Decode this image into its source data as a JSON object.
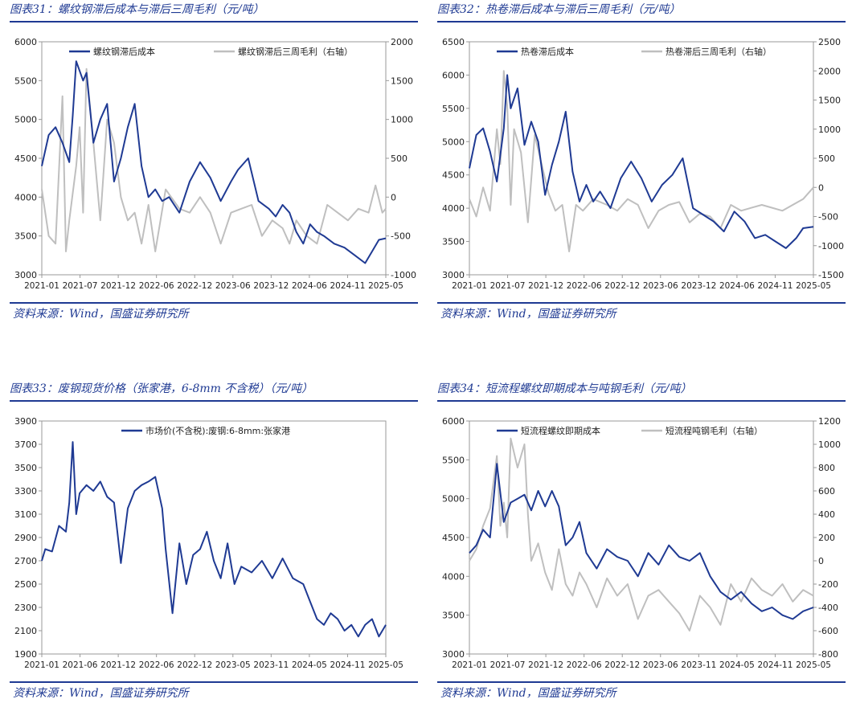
{
  "panels": [
    {
      "title": "图表31：螺纹钢滞后成本与滞后三周毛利（元/吨）",
      "source": "资料来源：Wind，国盛证券研究所",
      "chart_data": {
        "type": "line",
        "x_ticks": [
          "2021-01",
          "2021-07",
          "2021-12",
          "2022-06",
          "2022-12",
          "2023-06",
          "2023-12",
          "2024-06",
          "2024-11",
          "2025-05"
        ],
        "y_left": {
          "min": 3000,
          "max": 6000,
          "ticks": [
            3000,
            3500,
            4000,
            4500,
            5000,
            5500,
            6000
          ]
        },
        "y_right": {
          "min": -1000,
          "max": 2000,
          "ticks": [
            -1000,
            -500,
            0,
            500,
            1000,
            1500,
            2000
          ]
        },
        "legend": "top-center",
        "series": [
          {
            "name": "螺纹钢滞后成本",
            "axis": "left",
            "color": "#1f3a93",
            "x": [
              0,
              0.02,
              0.04,
              0.06,
              0.08,
              0.09,
              0.1,
              0.12,
              0.13,
              0.15,
              0.17,
              0.19,
              0.21,
              0.23,
              0.25,
              0.27,
              0.29,
              0.31,
              0.33,
              0.35,
              0.37,
              0.4,
              0.43,
              0.46,
              0.49,
              0.52,
              0.55,
              0.57,
              0.6,
              0.63,
              0.66,
              0.68,
              0.7,
              0.72,
              0.74,
              0.76,
              0.78,
              0.8,
              0.82,
              0.85,
              0.88,
              0.91,
              0.94,
              0.96,
              0.98,
              1.0
            ],
            "y": [
              4400,
              4800,
              4900,
              4700,
              4450,
              5050,
              5750,
              5500,
              5600,
              4700,
              5000,
              5200,
              4200,
              4500,
              4900,
              5200,
              4400,
              4000,
              4100,
              3950,
              4000,
              3800,
              4200,
              4450,
              4250,
              3950,
              4200,
              4350,
              4500,
              3950,
              3850,
              3750,
              3900,
              3800,
              3550,
              3400,
              3650,
              3550,
              3500,
              3400,
              3350,
              3250,
              3150,
              3300,
              3450,
              3470
            ]
          },
          {
            "name": "螺纹钢滞后三周毛利（右轴）",
            "axis": "right",
            "color": "#bfbfbf",
            "x": [
              0,
              0.02,
              0.04,
              0.06,
              0.07,
              0.08,
              0.1,
              0.11,
              0.12,
              0.13,
              0.15,
              0.17,
              0.19,
              0.21,
              0.23,
              0.25,
              0.27,
              0.29,
              0.31,
              0.33,
              0.36,
              0.4,
              0.43,
              0.46,
              0.49,
              0.52,
              0.55,
              0.58,
              0.61,
              0.64,
              0.67,
              0.7,
              0.72,
              0.74,
              0.77,
              0.8,
              0.83,
              0.86,
              0.89,
              0.92,
              0.95,
              0.97,
              0.99,
              1.0
            ],
            "y": [
              100,
              -500,
              -600,
              1300,
              -700,
              -300,
              400,
              900,
              -200,
              1650,
              700,
              -300,
              1000,
              700,
              0,
              -300,
              -200,
              -600,
              -100,
              -700,
              100,
              -150,
              -200,
              0,
              -200,
              -600,
              -200,
              -150,
              -100,
              -500,
              -300,
              -400,
              -600,
              -300,
              -500,
              -600,
              -100,
              -200,
              -300,
              -150,
              -200,
              150,
              -200,
              -150
            ]
          }
        ]
      }
    },
    {
      "title": "图表32：热卷滞后成本与滞后三周毛利（元/吨）",
      "source": "资料来源：Wind，国盛证券研究所",
      "chart_data": {
        "type": "line",
        "x_ticks": [
          "2021-01",
          "2021-07",
          "2021-12",
          "2022-06",
          "2022-12",
          "2023-06",
          "2023-12",
          "2024-06",
          "2024-11",
          "2025-05"
        ],
        "y_left": {
          "min": 3000,
          "max": 6500,
          "ticks": [
            3000,
            3500,
            4000,
            4500,
            5000,
            5500,
            6000,
            6500
          ]
        },
        "y_right": {
          "min": -1500,
          "max": 2500,
          "ticks": [
            -1500,
            -1000,
            -500,
            0,
            500,
            1000,
            1500,
            2000,
            2500
          ]
        },
        "legend": "top-center",
        "series": [
          {
            "name": "热卷滞后成本",
            "axis": "left",
            "color": "#1f3a93",
            "x": [
              0,
              0.02,
              0.04,
              0.06,
              0.08,
              0.1,
              0.11,
              0.12,
              0.14,
              0.16,
              0.18,
              0.2,
              0.22,
              0.24,
              0.26,
              0.28,
              0.3,
              0.32,
              0.34,
              0.36,
              0.38,
              0.41,
              0.44,
              0.47,
              0.5,
              0.53,
              0.56,
              0.59,
              0.62,
              0.65,
              0.68,
              0.71,
              0.74,
              0.77,
              0.8,
              0.83,
              0.86,
              0.89,
              0.92,
              0.95,
              0.97,
              1.0
            ],
            "y": [
              4600,
              5100,
              5200,
              4850,
              4400,
              5200,
              6000,
              5500,
              5800,
              4950,
              5300,
              5000,
              4200,
              4650,
              5000,
              5450,
              4550,
              4100,
              4350,
              4100,
              4250,
              4000,
              4450,
              4700,
              4450,
              4100,
              4350,
              4500,
              4750,
              4000,
              3900,
              3800,
              3650,
              3950,
              3800,
              3550,
              3600,
              3500,
              3400,
              3550,
              3700,
              3720
            ]
          },
          {
            "name": "热卷滞后三周毛利（右轴）",
            "axis": "right",
            "color": "#bfbfbf",
            "x": [
              0,
              0.02,
              0.04,
              0.06,
              0.08,
              0.09,
              0.1,
              0.11,
              0.12,
              0.13,
              0.15,
              0.17,
              0.19,
              0.21,
              0.23,
              0.25,
              0.27,
              0.29,
              0.31,
              0.33,
              0.36,
              0.4,
              0.43,
              0.46,
              0.49,
              0.52,
              0.55,
              0.58,
              0.61,
              0.64,
              0.67,
              0.7,
              0.73,
              0.76,
              0.79,
              0.82,
              0.85,
              0.88,
              0.91,
              0.94,
              0.97,
              1.0
            ],
            "y": [
              -200,
              -500,
              0,
              -400,
              1000,
              400,
              2000,
              1400,
              -300,
              1000,
              600,
              -600,
              900,
              400,
              -100,
              -400,
              -300,
              -1100,
              -300,
              -400,
              -200,
              -300,
              -400,
              -200,
              -300,
              -700,
              -400,
              -300,
              -250,
              -600,
              -450,
              -500,
              -700,
              -300,
              -400,
              -350,
              -300,
              -350,
              -400,
              -300,
              -200,
              0
            ]
          }
        ]
      }
    },
    {
      "title": "图表33：废钢现货价格（张家港，6-8mm 不含税）（元/吨）",
      "source": "资料来源：Wind，国盛证券研究所",
      "chart_data": {
        "type": "line",
        "x_ticks": [
          "2021-01",
          "2021-06",
          "2021-12",
          "2022-06",
          "2022-12",
          "2023-05",
          "2023-11",
          "2024-05",
          "2024-11",
          "2025-05"
        ],
        "y_left": {
          "min": 1900,
          "max": 3900,
          "ticks": [
            1900,
            2100,
            2300,
            2500,
            2700,
            2900,
            3100,
            3300,
            3500,
            3700,
            3900
          ]
        },
        "legend": "top-center",
        "series": [
          {
            "name": "市场价(不含税):废钢:6-8mm:张家港",
            "axis": "left",
            "color": "#1f3a93",
            "x": [
              0,
              0.01,
              0.03,
              0.05,
              0.07,
              0.08,
              0.09,
              0.1,
              0.11,
              0.13,
              0.15,
              0.17,
              0.19,
              0.21,
              0.23,
              0.25,
              0.27,
              0.29,
              0.31,
              0.33,
              0.35,
              0.36,
              0.38,
              0.4,
              0.42,
              0.44,
              0.46,
              0.48,
              0.5,
              0.52,
              0.54,
              0.56,
              0.58,
              0.61,
              0.64,
              0.67,
              0.7,
              0.73,
              0.76,
              0.78,
              0.8,
              0.82,
              0.84,
              0.86,
              0.88,
              0.9,
              0.92,
              0.94,
              0.96,
              0.98,
              1.0
            ],
            "y": [
              2700,
              2800,
              2780,
              3000,
              2950,
              3200,
              3720,
              3100,
              3280,
              3350,
              3300,
              3380,
              3250,
              3200,
              2680,
              3150,
              3300,
              3350,
              3380,
              3420,
              3150,
              2800,
              2250,
              2850,
              2500,
              2750,
              2800,
              2950,
              2700,
              2550,
              2850,
              2500,
              2650,
              2600,
              2700,
              2550,
              2720,
              2550,
              2500,
              2350,
              2200,
              2150,
              2250,
              2200,
              2100,
              2150,
              2050,
              2150,
              2200,
              2050,
              2150
            ]
          }
        ]
      }
    },
    {
      "title": "图表34：短流程螺纹即期成本与吨钢毛利（元/吨）",
      "source": "资料来源：Wind，国盛证券研究所",
      "chart_data": {
        "type": "line",
        "x_ticks": [
          "2021-01",
          "2021-07",
          "2021-12",
          "2022-06",
          "2022-12",
          "2023-06",
          "2023-11",
          "2024-05",
          "2024-11",
          "2025-05"
        ],
        "y_left": {
          "min": 3000,
          "max": 6000,
          "ticks": [
            3000,
            3500,
            4000,
            4500,
            5000,
            5500,
            6000
          ]
        },
        "y_right": {
          "min": -800,
          "max": 1200,
          "ticks": [
            -800,
            -600,
            -400,
            -200,
            0,
            200,
            400,
            600,
            800,
            1000,
            1200
          ]
        },
        "legend": "top-center",
        "series": [
          {
            "name": "短流程螺纹即期成本",
            "axis": "left",
            "color": "#1f3a93",
            "x": [
              0,
              0.02,
              0.04,
              0.06,
              0.08,
              0.1,
              0.12,
              0.14,
              0.16,
              0.18,
              0.2,
              0.22,
              0.24,
              0.26,
              0.28,
              0.3,
              0.32,
              0.34,
              0.37,
              0.4,
              0.43,
              0.46,
              0.49,
              0.52,
              0.55,
              0.58,
              0.61,
              0.64,
              0.67,
              0.7,
              0.73,
              0.76,
              0.79,
              0.82,
              0.85,
              0.88,
              0.91,
              0.94,
              0.97,
              1.0
            ],
            "y": [
              4300,
              4400,
              4600,
              4500,
              5450,
              4700,
              4950,
              5000,
              5050,
              4850,
              5100,
              4900,
              5100,
              4900,
              4400,
              4500,
              4700,
              4300,
              4100,
              4350,
              4250,
              4200,
              4000,
              4300,
              4150,
              4400,
              4250,
              4200,
              4300,
              4000,
              3800,
              3700,
              3800,
              3650,
              3550,
              3600,
              3500,
              3450,
              3550,
              3600
            ]
          },
          {
            "name": "短流程吨钢毛利（右轴）",
            "axis": "right",
            "color": "#bfbfbf",
            "x": [
              0,
              0.02,
              0.04,
              0.06,
              0.08,
              0.09,
              0.1,
              0.11,
              0.12,
              0.14,
              0.16,
              0.17,
              0.18,
              0.2,
              0.22,
              0.24,
              0.26,
              0.28,
              0.3,
              0.32,
              0.34,
              0.37,
              0.4,
              0.43,
              0.46,
              0.49,
              0.52,
              0.55,
              0.58,
              0.61,
              0.64,
              0.67,
              0.7,
              0.73,
              0.76,
              0.79,
              0.82,
              0.85,
              0.88,
              0.91,
              0.94,
              0.97,
              1.0
            ],
            "y": [
              0,
              100,
              300,
              450,
              900,
              300,
              500,
              200,
              1050,
              800,
              1000,
              400,
              0,
              150,
              -100,
              -250,
              100,
              -200,
              -300,
              -100,
              -200,
              -400,
              -150,
              -300,
              -200,
              -500,
              -300,
              -250,
              -350,
              -450,
              -600,
              -300,
              -400,
              -550,
              -200,
              -350,
              -150,
              -250,
              -300,
              -200,
              -350,
              -250,
              -300
            ]
          }
        ]
      }
    }
  ]
}
